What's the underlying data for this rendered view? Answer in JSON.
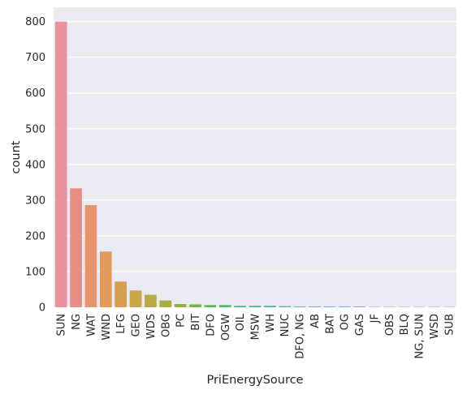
{
  "chart_data": {
    "type": "bar",
    "title": "",
    "xlabel": "PriEnergySource",
    "ylabel": "count",
    "ylim": [
      0,
      840
    ],
    "yticks": [
      0,
      100,
      200,
      300,
      400,
      500,
      600,
      700,
      800
    ],
    "grid": true,
    "categories": [
      "SUN",
      "NG",
      "WAT",
      "WND",
      "LFG",
      "GEO",
      "WDS",
      "OBG",
      "PC",
      "BIT",
      "DFO",
      "OGW",
      "OIL",
      "MSW",
      "WH",
      "NUC",
      "DFO, NG",
      "AB",
      "BAT",
      "OG",
      "GAS",
      "JF",
      "OBS",
      "BLQ",
      "NG, SUN",
      "WSD",
      "SUB"
    ],
    "values": [
      800,
      333,
      286,
      156,
      72,
      47,
      35,
      19,
      9,
      8,
      6,
      6,
      4,
      4,
      4,
      3,
      2,
      2,
      2,
      2,
      2,
      1,
      1,
      1,
      1,
      1,
      1
    ],
    "colors": [
      "#e8929d",
      "#e88f85",
      "#e8956f",
      "#e39a5e",
      "#d6a050",
      "#c9a74a",
      "#b8ab46",
      "#a5ae45",
      "#8eb146",
      "#72b54b",
      "#52b853",
      "#4bb76a",
      "#4cb680",
      "#4db590",
      "#4eb49e",
      "#50b3aa",
      "#52b2b6",
      "#55b0c2",
      "#5aadcf",
      "#63a8dc",
      "#74a1e6",
      "#8f98ec",
      "#a88eee",
      "#bc86ea",
      "#cd80e1",
      "#dc7dd2",
      "#e683c0"
    ]
  }
}
